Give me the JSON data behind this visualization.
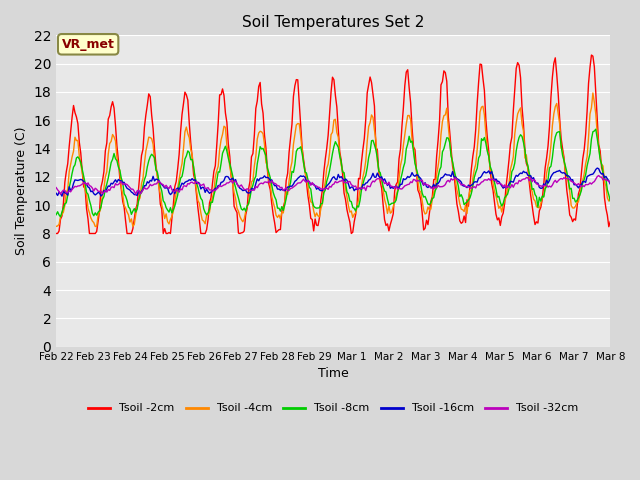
{
  "title": "Soil Temperatures Set 2",
  "xlabel": "Time",
  "ylabel": "Soil Temperature (C)",
  "ylim": [
    0,
    22
  ],
  "yticks": [
    0,
    2,
    4,
    6,
    8,
    10,
    12,
    14,
    16,
    18,
    20,
    22
  ],
  "annotation": "VR_met",
  "series_colors": {
    "Tsoil -2cm": "#ff0000",
    "Tsoil -4cm": "#ff8800",
    "Tsoil -8cm": "#00cc00",
    "Tsoil -16cm": "#0000cc",
    "Tsoil -32cm": "#bb00bb"
  },
  "xtick_labels": [
    "Feb 22",
    "Feb 23",
    "Feb 24",
    "Feb 25",
    "Feb 26",
    "Feb 27",
    "Feb 28",
    "Feb 29",
    "Mar 1",
    "Mar 2",
    "Mar 3",
    "Mar 4",
    "Mar 5",
    "Mar 6",
    "Mar 7",
    "Mar 8"
  ],
  "num_points": 384
}
